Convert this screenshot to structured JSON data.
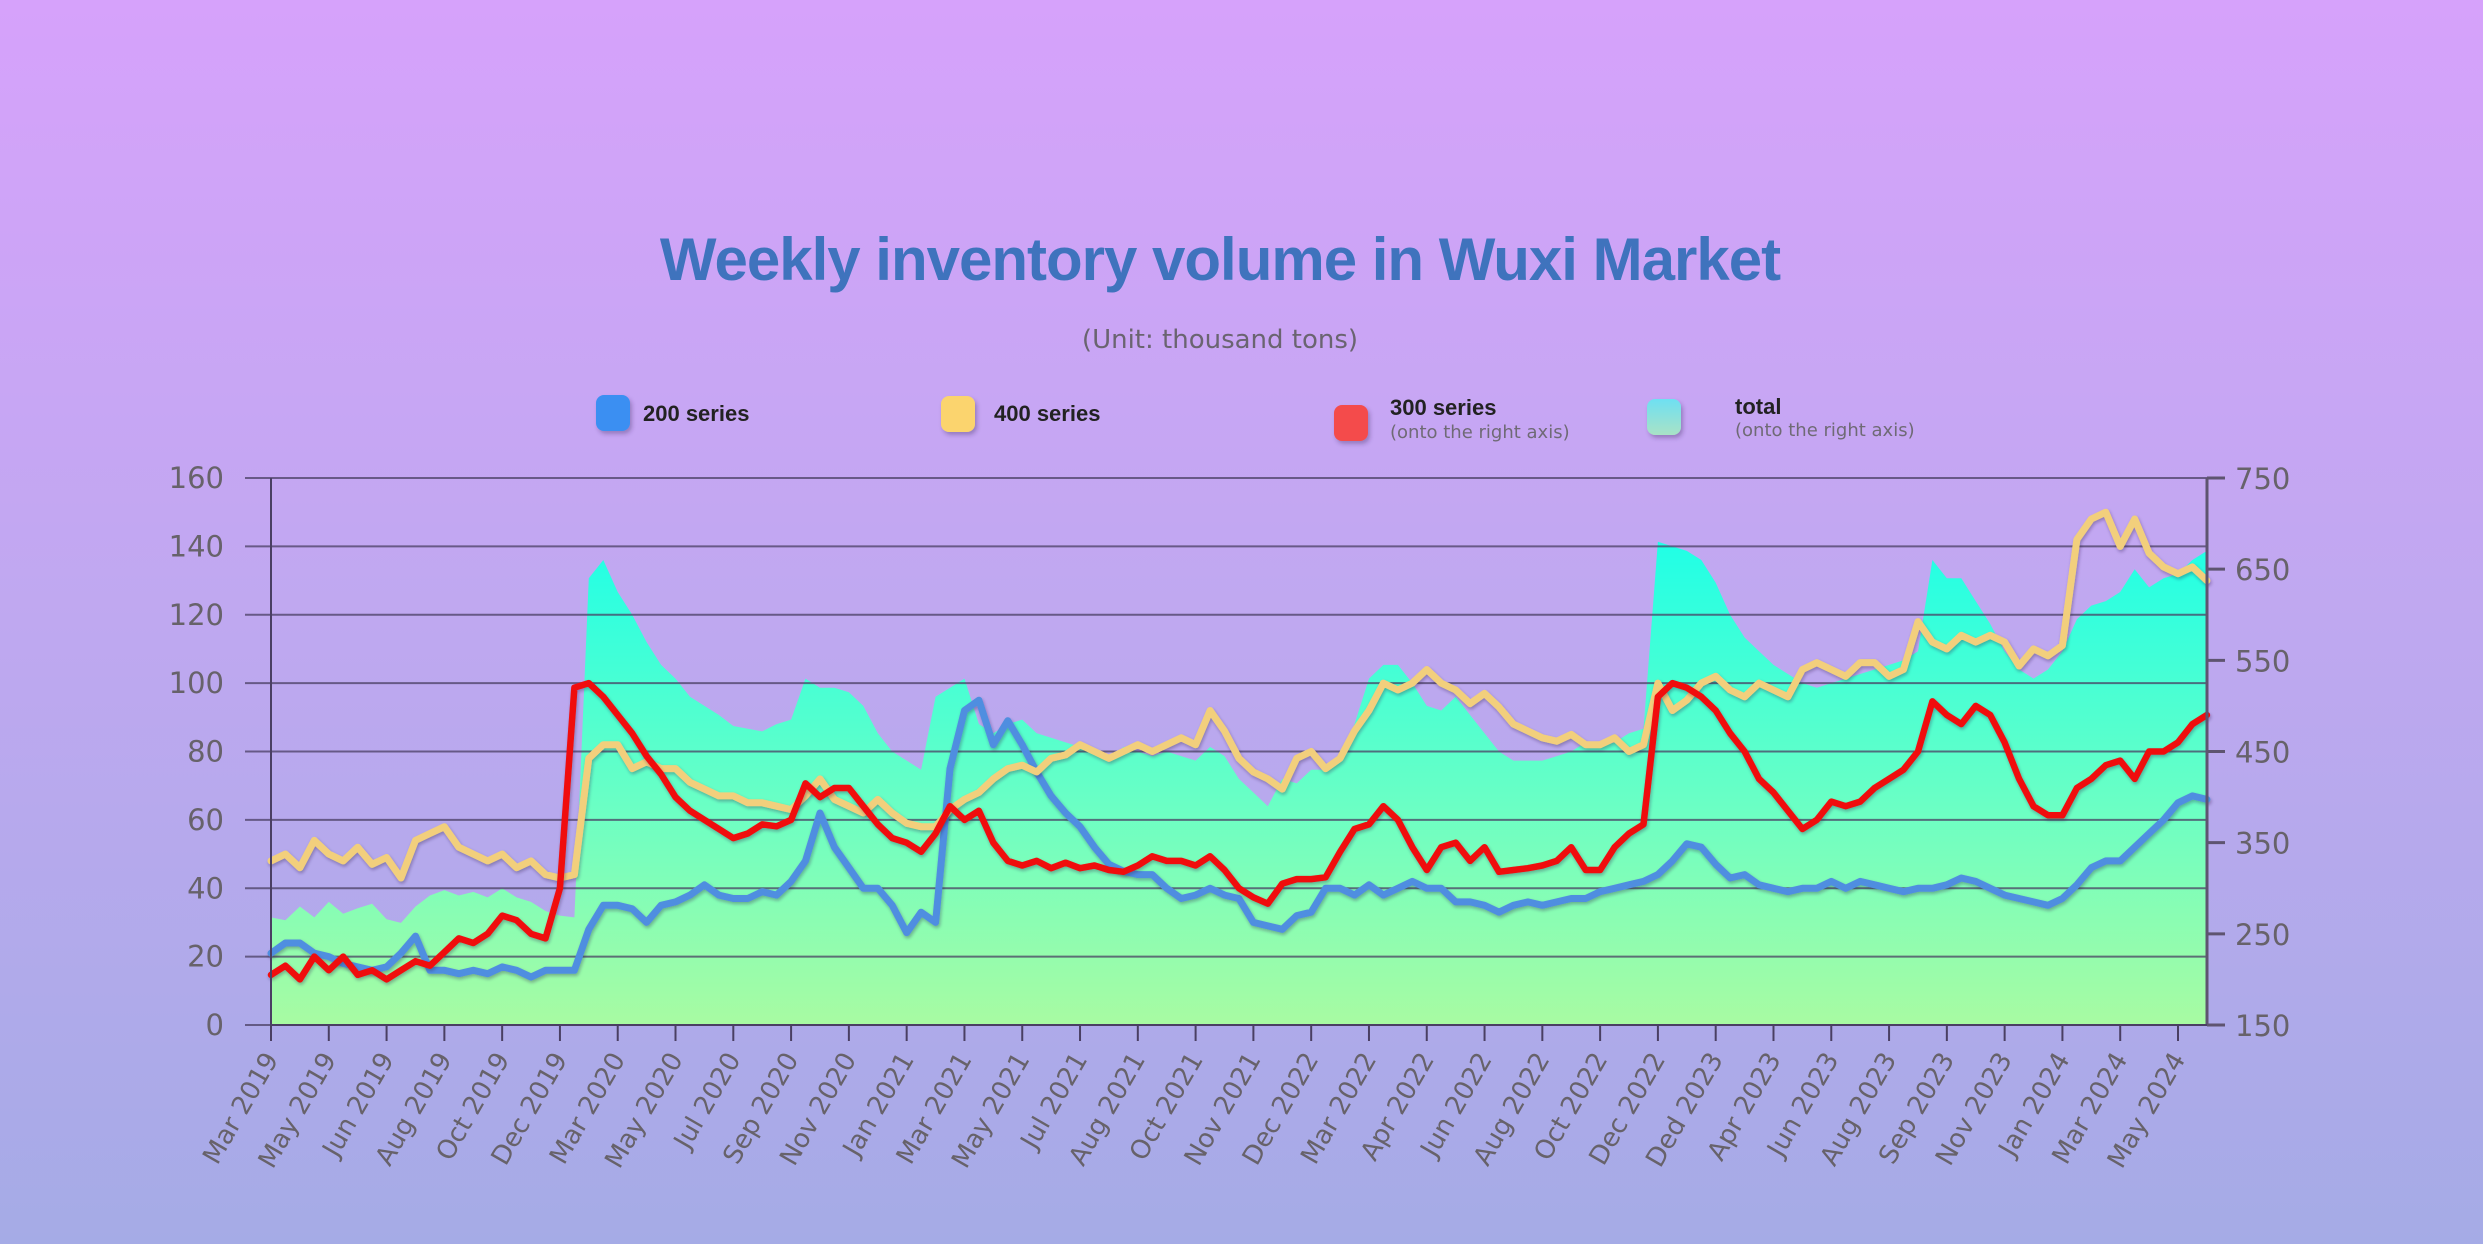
{
  "chart_data": {
    "type": "line",
    "title": "Weekly inventory volume in Wuxi Market",
    "subtitle": "(Unit: thousand tons)",
    "xlabel": "",
    "ylabel": "",
    "ylim_left": [
      0,
      160
    ],
    "ylim_right": [
      150,
      750
    ],
    "yticks_left": [
      "0",
      "20",
      "40",
      "60",
      "80",
      "100",
      "120",
      "140",
      "160"
    ],
    "yticks_right": [
      "150",
      "250",
      "350",
      "450",
      "550",
      "650",
      "750"
    ],
    "grid": true,
    "legend_position": "top",
    "x_tick_labels": [
      "Mar 2019",
      "May 2019",
      "Jun 2019",
      "Aug 2019",
      "Oct 2019",
      "Dec 2019",
      "Mar 2020",
      "May 2020",
      "Jul 2020",
      "Sep 2020",
      "Nov 2020",
      "Jan 2021",
      "Mar 2021",
      "May 2021",
      "Jul 2021",
      "Aug 2021",
      "Oct 2021",
      "Nov 2021",
      "Dec 2022",
      "Mar 2022",
      "Apr 2022",
      "Jun 2022",
      "Aug 2022",
      "Oct 2022",
      "Dec 2022",
      "Ded 2023",
      "Apr 2023",
      "Jun 2023",
      "Aug 2023",
      "Sep 2023",
      "Nov 2023",
      "Jan 2024",
      "Mar 2024",
      "May 2024"
    ],
    "points_per_tick_interval": 4,
    "series": [
      {
        "name": "200 series",
        "axis": "left",
        "kind": "line",
        "color": "#4f8ee0",
        "legend_color": "#3a8ff2",
        "values": [
          21,
          24,
          24,
          21,
          20,
          18,
          17,
          16,
          17,
          21,
          26,
          16,
          16,
          15,
          16,
          15,
          17,
          16,
          14,
          16,
          16,
          16,
          28,
          35,
          35,
          34,
          30,
          35,
          36,
          38,
          41,
          38,
          37,
          37,
          39,
          38,
          42,
          48,
          62,
          52,
          46,
          40,
          40,
          35,
          27,
          33,
          30,
          75,
          92,
          95,
          82,
          89,
          82,
          74,
          67,
          62,
          58,
          52,
          47,
          45,
          44,
          44,
          40,
          37,
          38,
          40,
          38,
          37,
          30,
          29,
          28,
          32,
          33,
          40,
          40,
          38,
          41,
          38,
          40,
          42,
          40,
          40,
          36,
          36,
          35,
          33,
          35,
          36,
          35,
          36,
          37,
          37,
          39,
          40,
          41,
          42,
          44,
          48,
          53,
          52,
          47,
          43,
          44,
          41,
          40,
          39,
          40,
          40,
          42,
          40,
          42,
          41,
          40,
          39,
          40,
          40,
          41,
          43,
          42,
          40,
          38,
          37,
          36,
          35,
          37,
          41,
          46,
          48,
          48,
          52,
          56,
          60,
          65,
          67,
          66
        ]
      },
      {
        "name": "400 series",
        "axis": "left",
        "kind": "line",
        "color": "#f2cf7c",
        "legend_color": "#fbd46e",
        "values": [
          48,
          50,
          46,
          54,
          50,
          48,
          52,
          47,
          49,
          43,
          54,
          56,
          58,
          52,
          50,
          48,
          50,
          46,
          48,
          44,
          43,
          44,
          78,
          82,
          82,
          75,
          77,
          75,
          75,
          71,
          69,
          67,
          67,
          65,
          65,
          64,
          63,
          67,
          72,
          66,
          64,
          62,
          66,
          62,
          59,
          58,
          58,
          63,
          66,
          68,
          72,
          75,
          76,
          74,
          78,
          79,
          82,
          80,
          78,
          80,
          82,
          80,
          82,
          84,
          82,
          92,
          86,
          78,
          74,
          72,
          69,
          78,
          80,
          75,
          78,
          86,
          92,
          100,
          98,
          100,
          104,
          100,
          98,
          94,
          97,
          93,
          88,
          86,
          84,
          83,
          85,
          82,
          82,
          84,
          80,
          82,
          100,
          92,
          95,
          100,
          102,
          98,
          96,
          100,
          98,
          96,
          104,
          106,
          104,
          102,
          106,
          106,
          102,
          104,
          118,
          112,
          110,
          114,
          112,
          114,
          112,
          105,
          110,
          108,
          111,
          142,
          148,
          150,
          140,
          148,
          138,
          134,
          132,
          134,
          130
        ]
      },
      {
        "name": "300 series",
        "note": "(onto the right axis)",
        "axis": "right",
        "kind": "line",
        "color": "#f00a0a",
        "legend_color": "#f44c4c",
        "values": [
          205,
          215,
          200,
          225,
          210,
          225,
          205,
          210,
          200,
          210,
          220,
          215,
          230,
          245,
          240,
          250,
          270,
          265,
          250,
          245,
          300,
          520,
          525,
          510,
          490,
          470,
          445,
          425,
          400,
          385,
          375,
          365,
          355,
          360,
          370,
          368,
          375,
          415,
          400,
          410,
          410,
          390,
          370,
          355,
          350,
          340,
          360,
          390,
          375,
          385,
          350,
          330,
          325,
          330,
          322,
          328,
          322,
          325,
          320,
          318,
          325,
          335,
          330,
          330,
          325,
          335,
          320,
          300,
          290,
          283,
          305,
          310,
          310,
          312,
          340,
          365,
          370,
          390,
          375,
          345,
          320,
          345,
          350,
          330,
          345,
          318,
          320,
          322,
          325,
          330,
          345,
          320,
          320,
          345,
          360,
          370,
          510,
          525,
          520,
          510,
          495,
          470,
          450,
          420,
          405,
          385,
          365,
          375,
          395,
          390,
          395,
          410,
          420,
          430,
          450,
          505,
          490,
          480,
          500,
          490,
          460,
          420,
          390,
          380,
          380,
          410,
          420,
          435,
          440,
          420,
          450,
          450,
          460,
          480,
          490
        ]
      },
      {
        "name": "total",
        "note": "(onto the right axis)",
        "axis": "right",
        "kind": "area",
        "color": "#2affe0",
        "legend_color_top": "#6ee0f2",
        "legend_color_bottom": "#a6e3c8",
        "values": [
          268,
          265,
          280,
          268,
          285,
          272,
          278,
          283,
          266,
          262,
          280,
          292,
          298,
          292,
          296,
          290,
          300,
          290,
          285,
          275,
          270,
          268,
          640,
          660,
          625,
          600,
          570,
          545,
          530,
          510,
          500,
          490,
          478,
          475,
          472,
          480,
          485,
          530,
          520,
          520,
          515,
          500,
          470,
          450,
          440,
          430,
          510,
          520,
          530,
          480,
          470,
          480,
          485,
          470,
          465,
          460,
          455,
          450,
          438,
          455,
          450,
          445,
          450,
          445,
          440,
          455,
          445,
          420,
          405,
          390,
          420,
          415,
          430,
          430,
          440,
          480,
          530,
          545,
          545,
          525,
          500,
          495,
          510,
          490,
          470,
          450,
          440,
          440,
          440,
          445,
          450,
          460,
          455,
          460,
          470,
          475,
          680,
          675,
          670,
          660,
          635,
          600,
          575,
          560,
          545,
          535,
          525,
          520,
          525,
          530,
          535,
          540,
          545,
          550,
          560,
          660,
          640,
          640,
          615,
          590,
          560,
          540,
          530,
          540,
          560,
          595,
          610,
          615,
          625,
          650,
          630,
          640,
          645,
          660,
          670
        ]
      }
    ]
  },
  "legend": [
    {
      "label": "200 series",
      "note": ""
    },
    {
      "label": "400 series",
      "note": ""
    },
    {
      "label": "300 series",
      "note": "(onto the right axis)"
    },
    {
      "label": "total",
      "note": "(onto the right axis)"
    }
  ]
}
